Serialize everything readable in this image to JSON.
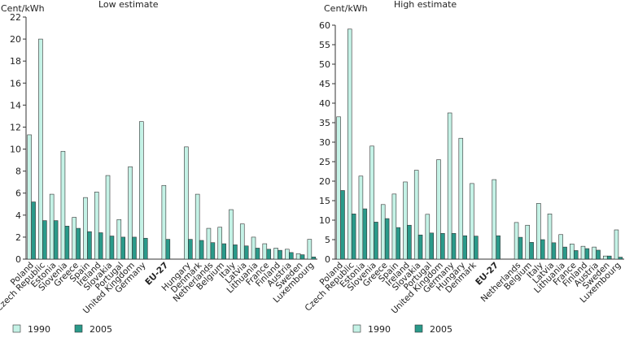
{
  "colors": {
    "series_1990": "#c4f2e6",
    "series_2005": "#2a9a8a",
    "bar_stroke": "#333333"
  },
  "chart_data": [
    {
      "type": "bar",
      "title": "Low estimate",
      "ylabel": "Cent/kWh",
      "ylim": [
        0,
        22
      ],
      "yticks": [
        0,
        2,
        4,
        6,
        8,
        10,
        12,
        14,
        16,
        18,
        20,
        22
      ],
      "grid": false,
      "legend": "bottom-left",
      "bold_categories": [
        "EU-27"
      ],
      "categories": [
        "Poland",
        "Czech Republic",
        "Estonia",
        "Slovenia",
        "Greece",
        "Spain",
        "Ireland",
        "Slovakia",
        "Portugal",
        "United Kingdom",
        "Germany",
        "",
        "EU-27",
        "",
        "Hungary",
        "Denmark",
        "Netherlands",
        "Belgium",
        "Italy",
        "Latvia",
        "Lithuania",
        "France",
        "Finland",
        "Austria",
        "Sweden",
        "Luxembourg"
      ],
      "series": [
        {
          "name": "1990",
          "values": [
            11.3,
            20.0,
            5.9,
            9.8,
            3.8,
            5.6,
            6.1,
            7.6,
            3.6,
            8.4,
            12.5,
            null,
            6.7,
            null,
            10.2,
            5.9,
            2.8,
            2.9,
            4.5,
            3.2,
            2.0,
            1.4,
            1.0,
            0.9,
            0.5,
            1.8
          ]
        },
        {
          "name": "2005",
          "values": [
            5.2,
            3.5,
            3.5,
            3.0,
            2.8,
            2.5,
            2.4,
            2.1,
            2.0,
            2.0,
            1.9,
            null,
            1.8,
            null,
            1.8,
            1.7,
            1.5,
            1.4,
            1.3,
            1.2,
            1.0,
            0.9,
            0.8,
            0.6,
            0.4,
            0.2
          ]
        }
      ]
    },
    {
      "type": "bar",
      "title": "High estimate",
      "ylabel": "Cent/kWh",
      "ylim": [
        0,
        60
      ],
      "yticks": [
        0,
        5,
        10,
        15,
        20,
        25,
        30,
        35,
        40,
        45,
        50,
        55,
        60
      ],
      "grid": false,
      "legend": "bottom-left",
      "bold_categories": [
        "EU-27"
      ],
      "categories": [
        "Poland",
        "Czech Republic",
        "Estonia",
        "Slovenia",
        "Greece",
        "Spain",
        "Ireland",
        "Slovakia",
        "Portugal",
        "United Kingdom",
        "Germany",
        "Hungary",
        "Denmark",
        "",
        "EU-27",
        "",
        "Netherlands",
        "Belgium",
        "Italy",
        "Latvia",
        "Lithuania",
        "France",
        "Finland",
        "Austria",
        "Sweden",
        "Luxembourg"
      ],
      "series": [
        {
          "name": "1990",
          "values": [
            36.5,
            59.0,
            21.3,
            29.0,
            14.0,
            16.7,
            19.8,
            22.8,
            11.5,
            25.5,
            37.5,
            31.0,
            19.4,
            null,
            20.4,
            null,
            9.4,
            8.7,
            14.3,
            11.6,
            6.3,
            3.9,
            3.3,
            3.1,
            0.8,
            7.5
          ]
        },
        {
          "name": "2005",
          "values": [
            17.6,
            11.6,
            12.9,
            9.5,
            10.4,
            8.1,
            8.7,
            6.2,
            6.7,
            6.6,
            6.6,
            6.0,
            5.9,
            null,
            6.0,
            null,
            5.6,
            4.3,
            5.0,
            4.2,
            3.1,
            2.2,
            2.7,
            2.3,
            0.8,
            0.5
          ]
        }
      ]
    }
  ]
}
